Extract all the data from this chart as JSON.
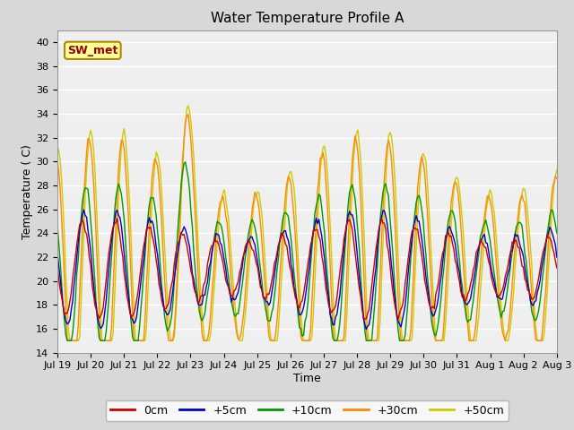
{
  "title": "Water Temperature Profile A",
  "xlabel": "Time",
  "ylabel": "Temperature ( C)",
  "ylim": [
    14,
    41
  ],
  "yticks": [
    14,
    16,
    18,
    20,
    22,
    24,
    26,
    28,
    30,
    32,
    34,
    36,
    38,
    40
  ],
  "xtick_labels": [
    "Jul 19",
    "Jul 20",
    "Jul 21",
    "Jul 22",
    "Jul 23",
    "Jul 24",
    "Jul 25",
    "Jul 26",
    "Jul 27",
    "Jul 28",
    "Jul 29",
    "Jul 30",
    "Jul 31",
    "Aug 1",
    "Aug 2",
    "Aug 3"
  ],
  "legend_entries": [
    "0cm",
    "+5cm",
    "+10cm",
    "+30cm",
    "+50cm"
  ],
  "line_colors": [
    "#cc0000",
    "#0000cc",
    "#009900",
    "#ff8800",
    "#cccc00"
  ],
  "fig_facecolor": "#d8d8d8",
  "ax_facecolor": "#efefef",
  "annotation_text": "SW_met",
  "annotation_bg": "#ffff99",
  "annotation_border": "#aa8800",
  "annotation_text_color": "#990000",
  "title_fontsize": 11,
  "label_fontsize": 9,
  "tick_fontsize": 8
}
